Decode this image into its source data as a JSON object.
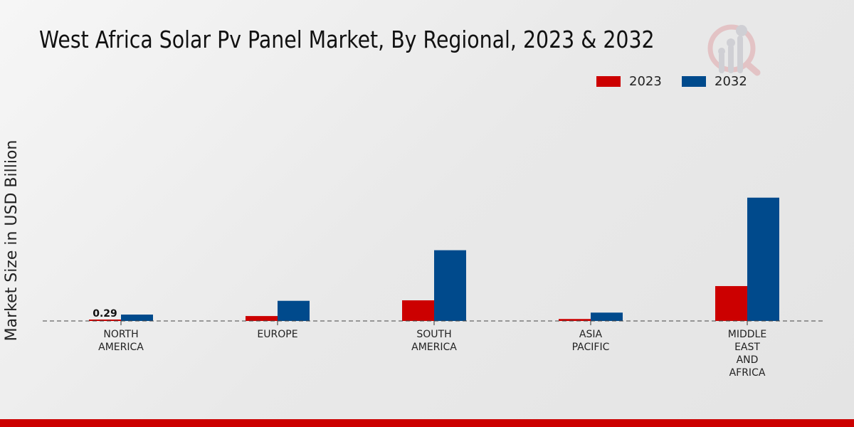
{
  "chart_data": {
    "type": "bar",
    "title": "West Africa Solar Pv Panel Market, By Regional, 2023 & 2032",
    "ylabel": "Market Size in USD Billion",
    "xlabel": "",
    "categories": [
      "NORTH\nAMERICA",
      "EUROPE",
      "SOUTH\nAMERICA",
      "ASIA\nPACIFIC",
      "MIDDLE\nEAST\nAND\nAFRICA"
    ],
    "series": [
      {
        "name": "2023",
        "color": "#cc0000",
        "values": [
          0.29,
          1.0,
          4.2,
          0.4,
          7.1
        ]
      },
      {
        "name": "2032",
        "color": "#004a8c",
        "values": [
          1.3,
          4.1,
          14.4,
          1.7,
          25.1
        ]
      }
    ],
    "data_labels": [
      {
        "series": "2023",
        "category_index": 0,
        "text": "0.29"
      }
    ],
    "ylim": [
      0,
      46.5
    ],
    "grid": false,
    "legend": "top-right"
  }
}
